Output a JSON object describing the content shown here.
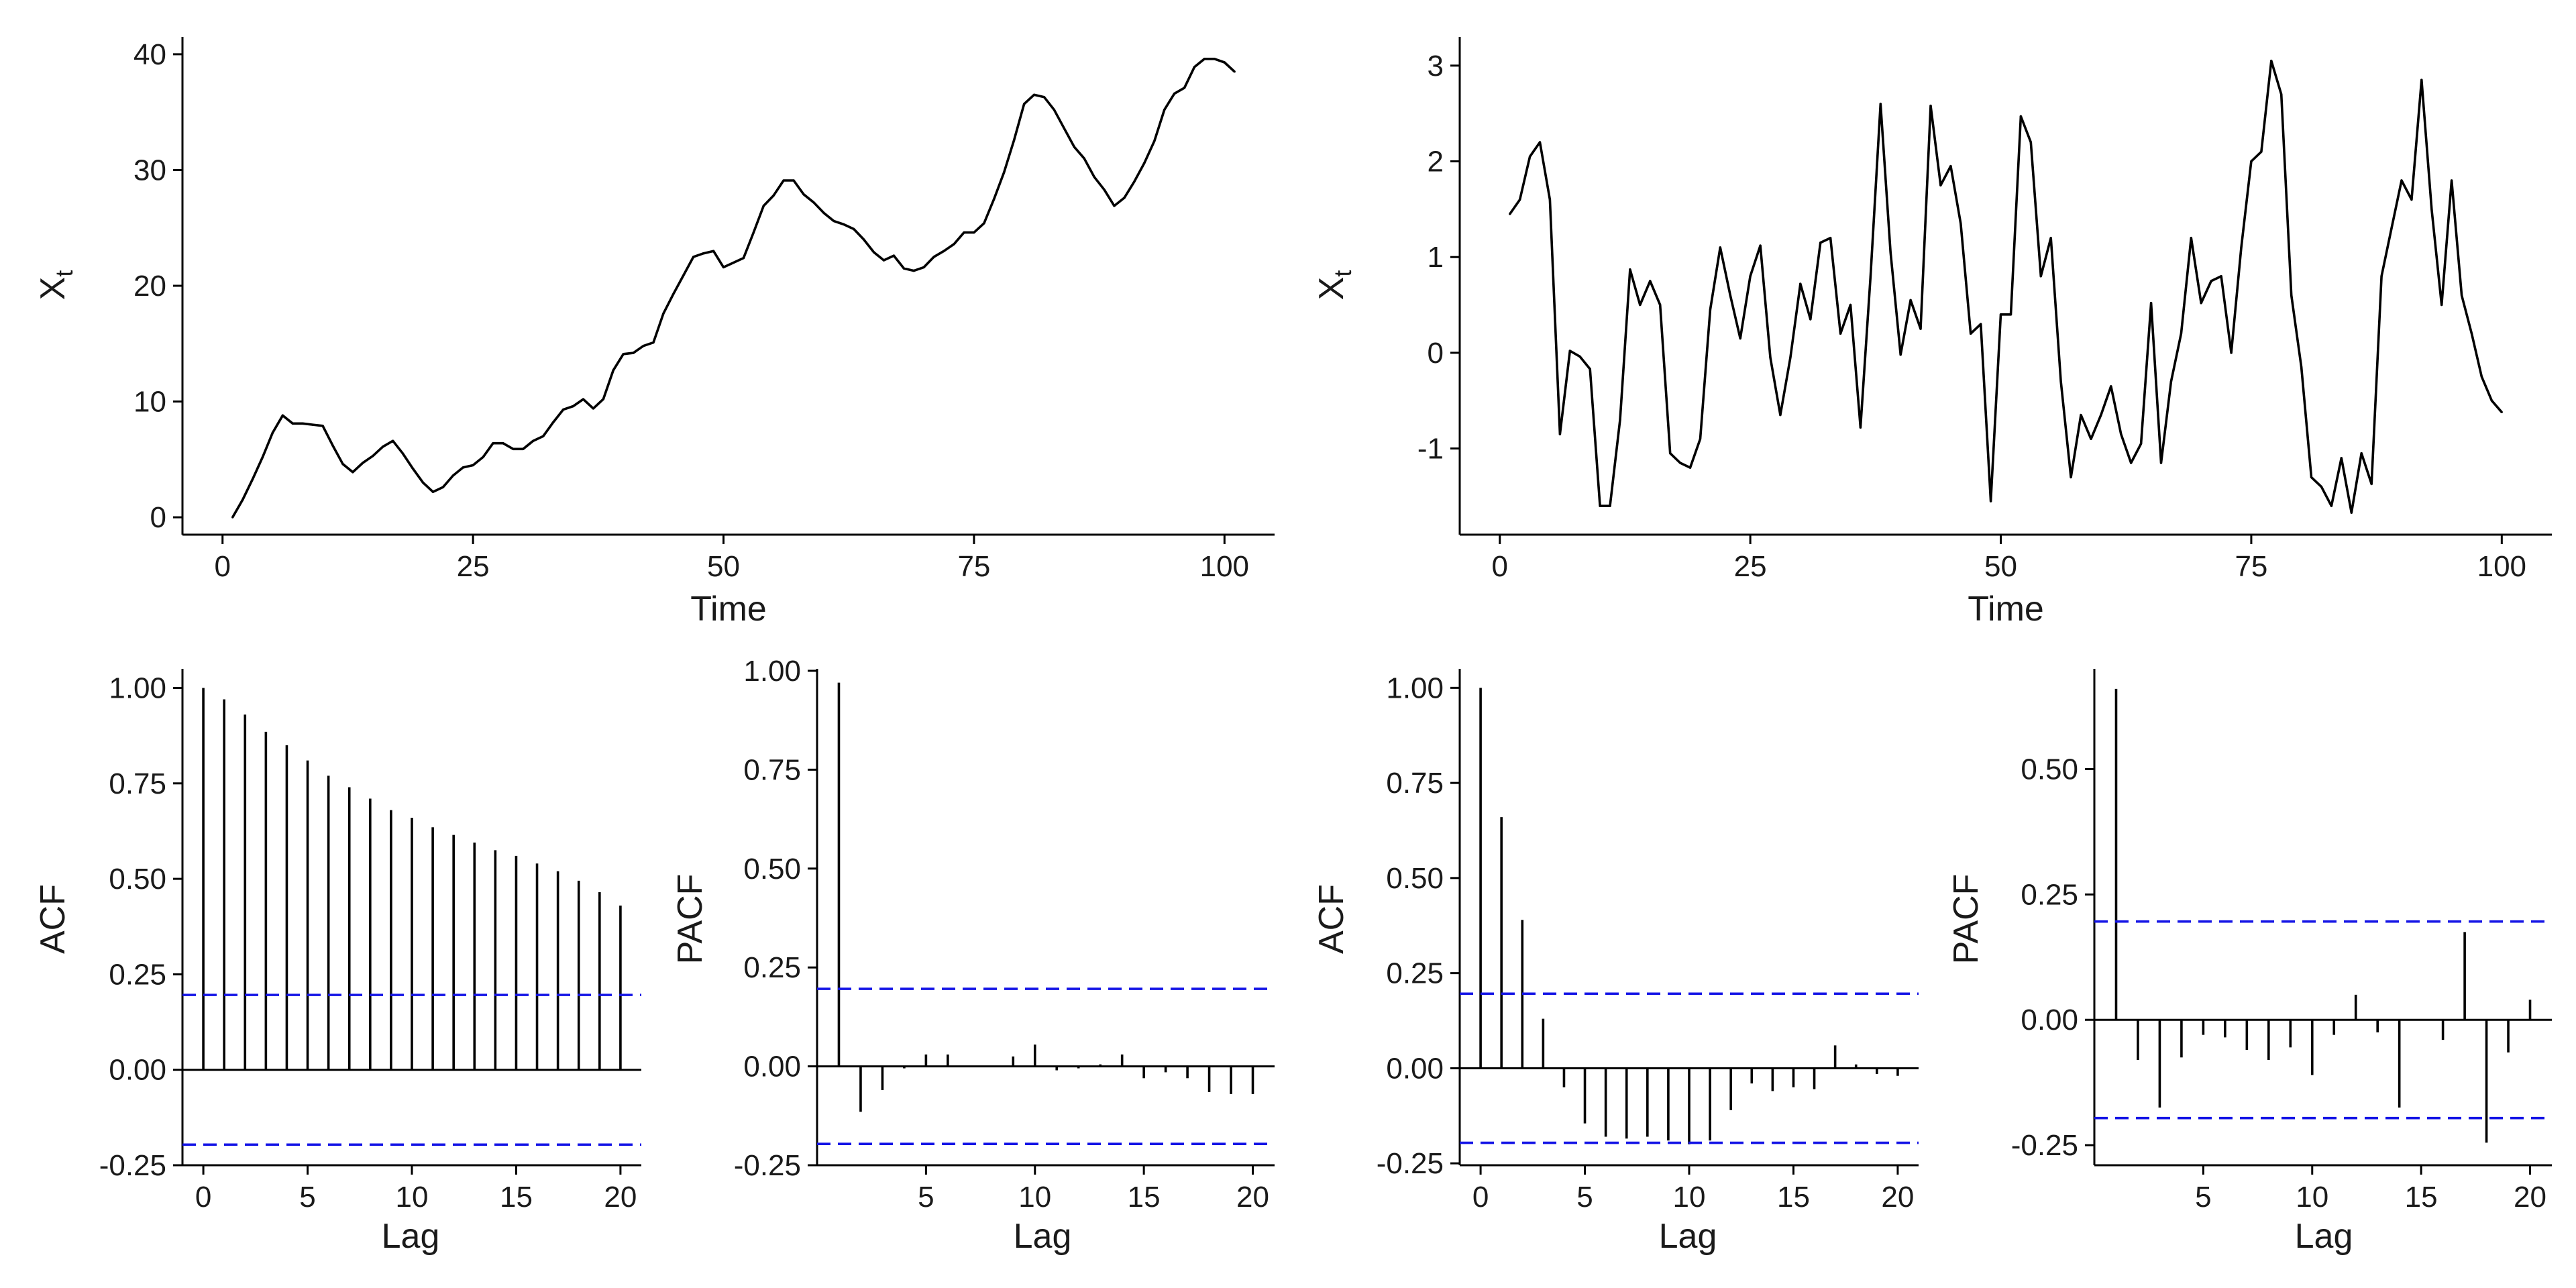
{
  "chart_data": [
    {
      "id": "ts1",
      "type": "line",
      "xlabel": "Time",
      "ylabel": "X",
      "ylabel_sub": "t",
      "xlim": [
        -4,
        105
      ],
      "ylim": [
        -1.5,
        41.5
      ],
      "xticks": [
        0,
        25,
        50,
        75,
        100
      ],
      "yticks": [
        0,
        10,
        20,
        30,
        40
      ],
      "x": [
        1,
        2,
        3,
        4,
        5,
        6,
        7,
        8,
        9,
        10,
        11,
        12,
        13,
        14,
        15,
        16,
        17,
        18,
        19,
        20,
        21,
        22,
        23,
        24,
        25,
        26,
        27,
        28,
        29,
        30,
        31,
        32,
        33,
        34,
        35,
        36,
        37,
        38,
        39,
        40,
        41,
        42,
        43,
        44,
        45,
        46,
        47,
        48,
        49,
        50,
        51,
        52,
        53,
        54,
        55,
        56,
        57,
        58,
        59,
        60,
        61,
        62,
        63,
        64,
        65,
        66,
        67,
        68,
        69,
        70,
        71,
        72,
        73,
        74,
        75,
        76,
        77,
        78,
        79,
        80,
        81,
        82,
        83,
        84,
        85,
        86,
        87,
        88,
        89,
        90,
        91,
        92,
        93,
        94,
        95,
        96,
        97,
        98,
        99,
        100,
        101
      ],
      "values": [
        0.0,
        1.5,
        3.3,
        5.2,
        7.3,
        8.8,
        8.1,
        8.1,
        8.0,
        7.9,
        6.2,
        4.6,
        3.9,
        4.7,
        5.3,
        6.1,
        6.6,
        5.5,
        4.2,
        3.0,
        2.2,
        2.6,
        3.6,
        4.3,
        4.5,
        5.2,
        6.4,
        6.4,
        5.9,
        5.9,
        6.6,
        7.0,
        8.2,
        9.3,
        9.6,
        10.2,
        9.4,
        10.2,
        12.7,
        14.1,
        14.2,
        14.8,
        15.1,
        17.6,
        19.3,
        20.9,
        22.5,
        22.8,
        23.0,
        21.6,
        22.0,
        22.4,
        24.6,
        26.9,
        27.8,
        29.1,
        29.1,
        27.9,
        27.2,
        26.3,
        25.6,
        25.3,
        24.9,
        24.0,
        22.9,
        22.2,
        22.6,
        21.5,
        21.3,
        21.6,
        22.5,
        23.0,
        23.6,
        24.6,
        24.6,
        25.4,
        27.5,
        29.8,
        32.6,
        35.7,
        36.5,
        36.3,
        35.2,
        33.6,
        32.0,
        31.0,
        29.4,
        28.3,
        26.9,
        27.6,
        29.0,
        30.6,
        32.5,
        35.2,
        36.6,
        37.1,
        38.9,
        39.6,
        39.6,
        39.3,
        38.5
      ]
    },
    {
      "id": "ts2",
      "type": "line",
      "xlabel": "Time",
      "ylabel": "X",
      "ylabel_sub": "t",
      "xlim": [
        -4,
        105
      ],
      "ylim": [
        -1.9,
        3.3
      ],
      "xticks": [
        0,
        25,
        50,
        75,
        100
      ],
      "yticks": [
        -1,
        0,
        1,
        2,
        3
      ],
      "x": [
        1,
        2,
        3,
        4,
        5,
        6,
        7,
        8,
        9,
        10,
        11,
        12,
        13,
        14,
        15,
        16,
        17,
        18,
        19,
        20,
        21,
        22,
        23,
        24,
        25,
        26,
        27,
        28,
        29,
        30,
        31,
        32,
        33,
        34,
        35,
        36,
        37,
        38,
        39,
        40,
        41,
        42,
        43,
        44,
        45,
        46,
        47,
        48,
        49,
        50,
        51,
        52,
        53,
        54,
        55,
        56,
        57,
        58,
        59,
        60,
        61,
        62,
        63,
        64,
        65,
        66,
        67,
        68,
        69,
        70,
        71,
        72,
        73,
        74,
        75,
        76,
        77,
        78,
        79,
        80,
        81,
        82,
        83,
        84,
        85,
        86,
        87,
        88,
        89,
        90,
        91,
        92,
        93,
        94,
        95,
        96,
        97,
        98,
        99,
        100
      ],
      "values": [
        1.45,
        1.6,
        2.05,
        2.2,
        1.6,
        -0.85,
        0.02,
        -0.04,
        -0.17,
        -1.6,
        -1.6,
        -0.7,
        0.87,
        0.5,
        0.75,
        0.5,
        -1.05,
        -1.15,
        -1.2,
        -0.9,
        0.45,
        1.1,
        0.6,
        0.15,
        0.8,
        1.12,
        -0.05,
        -0.65,
        -0.05,
        0.72,
        0.35,
        1.15,
        1.2,
        0.2,
        0.5,
        -0.78,
        0.8,
        2.6,
        1.05,
        -0.02,
        0.55,
        0.25,
        2.58,
        1.75,
        1.95,
        1.35,
        0.2,
        0.3,
        -1.55,
        0.4,
        0.4,
        2.47,
        2.2,
        0.8,
        1.2,
        -0.3,
        -1.3,
        -0.65,
        -0.9,
        -0.65,
        -0.35,
        -0.85,
        -1.15,
        -0.95,
        0.52,
        -1.15,
        -0.3,
        0.2,
        1.2,
        0.52,
        0.75,
        0.8,
        0.0,
        1.1,
        2.0,
        2.1,
        3.05,
        2.7,
        0.6,
        -0.15,
        -1.3,
        -1.4,
        -1.6,
        -1.1,
        -1.67,
        -1.05,
        -1.37,
        0.8,
        1.3,
        1.8,
        1.6,
        2.85,
        1.5,
        0.5,
        1.8,
        0.6,
        0.2,
        -0.25,
        -0.5,
        -0.62
      ]
    },
    {
      "id": "acf1",
      "type": "bar",
      "xlabel": "Lag",
      "ylabel": "ACF",
      "xlim": [
        -1,
        21
      ],
      "ylim": [
        -0.25,
        1.05
      ],
      "xticks": [
        0,
        5,
        10,
        15,
        20
      ],
      "yticks": [
        -0.25,
        0,
        0.25,
        0.5,
        0.75,
        1.0
      ],
      "ytick_labels": [
        "-0.25",
        "0.00",
        "0.25",
        "0.50",
        "0.75",
        "1.00"
      ],
      "ci": 0.196,
      "x": [
        0,
        1,
        2,
        3,
        4,
        5,
        6,
        7,
        8,
        9,
        10,
        11,
        12,
        13,
        14,
        15,
        16,
        17,
        18,
        19,
        20
      ],
      "values": [
        1.0,
        0.97,
        0.93,
        0.885,
        0.85,
        0.81,
        0.77,
        0.74,
        0.71,
        0.68,
        0.66,
        0.635,
        0.615,
        0.595,
        0.575,
        0.56,
        0.54,
        0.52,
        0.495,
        0.465,
        0.43
      ]
    },
    {
      "id": "pacf1",
      "type": "bar",
      "xlabel": "Lag",
      "ylabel": "PACF",
      "xlim": [
        0,
        21
      ],
      "ylim": [
        -0.25,
        1.005
      ],
      "xticks": [
        5,
        10,
        15,
        20
      ],
      "yticks": [
        -0.25,
        0,
        0.25,
        0.5,
        0.75,
        1.0
      ],
      "ytick_labels": [
        "-0.25",
        "0.00",
        "0.25",
        "0.50",
        "0.75",
        "1.00"
      ],
      "ci": 0.196,
      "x": [
        1,
        2,
        3,
        4,
        5,
        6,
        7,
        8,
        9,
        10,
        11,
        12,
        13,
        14,
        15,
        16,
        17,
        18,
        19,
        20
      ],
      "values": [
        0.97,
        -0.115,
        -0.06,
        -0.005,
        0.03,
        0.03,
        0.0,
        0.0,
        0.025,
        0.055,
        -0.01,
        -0.005,
        0.005,
        0.03,
        -0.03,
        -0.015,
        -0.03,
        -0.065,
        -0.07,
        -0.07
      ]
    },
    {
      "id": "acf2",
      "type": "bar",
      "xlabel": "Lag",
      "ylabel": "ACF",
      "xlim": [
        -1,
        21
      ],
      "ylim": [
        -0.255,
        1.05
      ],
      "xticks": [
        0,
        5,
        10,
        15,
        20
      ],
      "yticks": [
        -0.25,
        0,
        0.25,
        0.5,
        0.75,
        1.0
      ],
      "ytick_labels": [
        "-0.25",
        "0.00",
        "0.25",
        "0.50",
        "0.75",
        "1.00"
      ],
      "ci": 0.196,
      "x": [
        0,
        1,
        2,
        3,
        4,
        5,
        6,
        7,
        8,
        9,
        10,
        11,
        12,
        13,
        14,
        15,
        16,
        17,
        18,
        19,
        20
      ],
      "values": [
        1.0,
        0.66,
        0.39,
        0.13,
        -0.05,
        -0.145,
        -0.18,
        -0.185,
        -0.18,
        -0.19,
        -0.2,
        -0.19,
        -0.11,
        -0.04,
        -0.06,
        -0.05,
        -0.055,
        0.06,
        0.01,
        -0.015,
        -0.02
      ]
    },
    {
      "id": "pacf2",
      "type": "bar",
      "xlabel": "Lag",
      "ylabel": "PACF",
      "xlim": [
        0,
        21
      ],
      "ylim": [
        -0.29,
        0.7
      ],
      "xticks": [
        5,
        10,
        15,
        20
      ],
      "yticks": [
        -0.25,
        0,
        0.25,
        0.5
      ],
      "ytick_labels": [
        "-0.25",
        "0.00",
        "0.25",
        "0.50"
      ],
      "ci": 0.196,
      "x": [
        1,
        2,
        3,
        4,
        5,
        6,
        7,
        8,
        9,
        10,
        11,
        12,
        13,
        14,
        15,
        16,
        17,
        18,
        19,
        20
      ],
      "values": [
        0.66,
        -0.08,
        -0.175,
        -0.075,
        -0.03,
        -0.035,
        -0.06,
        -0.08,
        -0.055,
        -0.11,
        -0.03,
        0.05,
        -0.025,
        -0.175,
        0.0,
        -0.04,
        0.175,
        -0.245,
        -0.065,
        0.04
      ]
    }
  ]
}
